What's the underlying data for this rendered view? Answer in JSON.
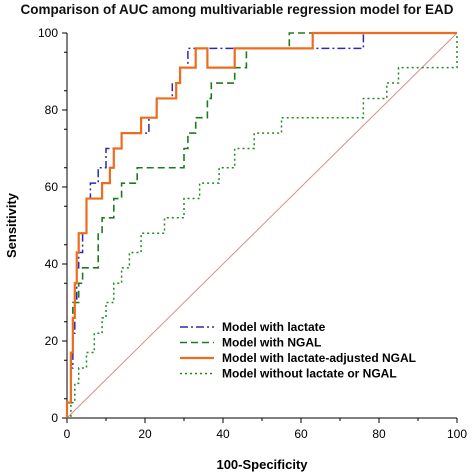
{
  "chart_data": {
    "type": "line",
    "title": "Comparison of AUC among multivariable regression model for EAD",
    "xlabel": "100-Specificity",
    "ylabel": "Sensitivity",
    "xlim": [
      0,
      100
    ],
    "ylim": [
      0,
      100
    ],
    "xticks": [
      0,
      20,
      40,
      60,
      80,
      100
    ],
    "yticks": [
      0,
      20,
      40,
      60,
      80,
      100
    ],
    "grid": false,
    "legend_position": "bottom-center",
    "diagonal_reference": {
      "color": "#d98c8c",
      "from": [
        0,
        0
      ],
      "to": [
        100,
        100
      ]
    },
    "series": [
      {
        "name": "Model with lactate",
        "color": "#2b2bb0",
        "dash": "dashdot",
        "points": [
          [
            0,
            0
          ],
          [
            0,
            4
          ],
          [
            1,
            4
          ],
          [
            1,
            13
          ],
          [
            1.5,
            13
          ],
          [
            1.5,
            22
          ],
          [
            2,
            22
          ],
          [
            2,
            30
          ],
          [
            2.5,
            30
          ],
          [
            2.5,
            39
          ],
          [
            3,
            39
          ],
          [
            3,
            43
          ],
          [
            4,
            43
          ],
          [
            4,
            48
          ],
          [
            5,
            48
          ],
          [
            5,
            57
          ],
          [
            6,
            57
          ],
          [
            6,
            61
          ],
          [
            8,
            61
          ],
          [
            8,
            65
          ],
          [
            10,
            65
          ],
          [
            10,
            70
          ],
          [
            14,
            70
          ],
          [
            14,
            74
          ],
          [
            21,
            74
          ],
          [
            21,
            78
          ],
          [
            23,
            78
          ],
          [
            23,
            83
          ],
          [
            27,
            83
          ],
          [
            27,
            87
          ],
          [
            29,
            87
          ],
          [
            29,
            91
          ],
          [
            31,
            91
          ],
          [
            31,
            96
          ],
          [
            76,
            96
          ],
          [
            76,
            100
          ],
          [
            100,
            100
          ]
        ]
      },
      {
        "name": "Model with NGAL",
        "color": "#1e7a1e",
        "dash": "dash",
        "points": [
          [
            0,
            0
          ],
          [
            0,
            4
          ],
          [
            1,
            4
          ],
          [
            1,
            17
          ],
          [
            1.5,
            17
          ],
          [
            1.5,
            30
          ],
          [
            3,
            30
          ],
          [
            3,
            35
          ],
          [
            4,
            35
          ],
          [
            4,
            39
          ],
          [
            8,
            39
          ],
          [
            8,
            48
          ],
          [
            9,
            48
          ],
          [
            9,
            52
          ],
          [
            12,
            52
          ],
          [
            12,
            57
          ],
          [
            14,
            57
          ],
          [
            14,
            61
          ],
          [
            18,
            61
          ],
          [
            18,
            65
          ],
          [
            30,
            65
          ],
          [
            30,
            70
          ],
          [
            31,
            70
          ],
          [
            31,
            74
          ],
          [
            33,
            74
          ],
          [
            33,
            78
          ],
          [
            36,
            78
          ],
          [
            36,
            83
          ],
          [
            37,
            83
          ],
          [
            37,
            87
          ],
          [
            43,
            87
          ],
          [
            43,
            91
          ],
          [
            46,
            91
          ],
          [
            46,
            96
          ],
          [
            57,
            96
          ],
          [
            57,
            100
          ],
          [
            100,
            100
          ]
        ]
      },
      {
        "name": "Model with lactate-adjusted NGAL",
        "color": "#ee6c1e",
        "dash": "solid",
        "points": [
          [
            0,
            0
          ],
          [
            0,
            4
          ],
          [
            1,
            4
          ],
          [
            1,
            17
          ],
          [
            1.5,
            17
          ],
          [
            1.5,
            26
          ],
          [
            2,
            26
          ],
          [
            2,
            35
          ],
          [
            2.5,
            35
          ],
          [
            2.5,
            43
          ],
          [
            3,
            43
          ],
          [
            3,
            48
          ],
          [
            5,
            48
          ],
          [
            5,
            57
          ],
          [
            9,
            57
          ],
          [
            9,
            61
          ],
          [
            11,
            61
          ],
          [
            11,
            65
          ],
          [
            12,
            65
          ],
          [
            12,
            70
          ],
          [
            14,
            70
          ],
          [
            14,
            74
          ],
          [
            19,
            74
          ],
          [
            19,
            78
          ],
          [
            23,
            78
          ],
          [
            23,
            83
          ],
          [
            28,
            83
          ],
          [
            28,
            87
          ],
          [
            29,
            87
          ],
          [
            29,
            91
          ],
          [
            33,
            91
          ],
          [
            33,
            96
          ],
          [
            36,
            96
          ],
          [
            36,
            91
          ],
          [
            43,
            91
          ],
          [
            43,
            96
          ],
          [
            63,
            96
          ],
          [
            63,
            100
          ],
          [
            100,
            100
          ]
        ]
      },
      {
        "name": "Model without lactate or NGAL",
        "color": "#1e8a1e",
        "dash": "dot",
        "points": [
          [
            0,
            0
          ],
          [
            1,
            0
          ],
          [
            1,
            4
          ],
          [
            2,
            4
          ],
          [
            2,
            9
          ],
          [
            3,
            9
          ],
          [
            3,
            13
          ],
          [
            5,
            13
          ],
          [
            5,
            17
          ],
          [
            7,
            17
          ],
          [
            7,
            22
          ],
          [
            9,
            22
          ],
          [
            9,
            26
          ],
          [
            10,
            26
          ],
          [
            10,
            30
          ],
          [
            12,
            30
          ],
          [
            12,
            35
          ],
          [
            14,
            35
          ],
          [
            14,
            39
          ],
          [
            16,
            39
          ],
          [
            16,
            43
          ],
          [
            19,
            43
          ],
          [
            19,
            48
          ],
          [
            25,
            48
          ],
          [
            25,
            52
          ],
          [
            30,
            52
          ],
          [
            30,
            57
          ],
          [
            34,
            57
          ],
          [
            34,
            61
          ],
          [
            39,
            61
          ],
          [
            39,
            65
          ],
          [
            43,
            65
          ],
          [
            43,
            70
          ],
          [
            48,
            70
          ],
          [
            48,
            74
          ],
          [
            55,
            74
          ],
          [
            55,
            78
          ],
          [
            76,
            78
          ],
          [
            76,
            83
          ],
          [
            82,
            83
          ],
          [
            82,
            87
          ],
          [
            85,
            87
          ],
          [
            85,
            91
          ],
          [
            100,
            91
          ],
          [
            100,
            100
          ]
        ]
      }
    ]
  }
}
